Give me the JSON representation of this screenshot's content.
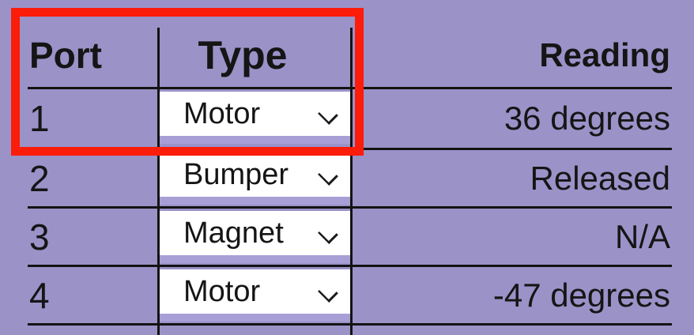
{
  "table": {
    "headers": {
      "port": "Port",
      "type": "Type",
      "reading": "Reading"
    },
    "rows": [
      {
        "port": "1",
        "type": "Motor",
        "reading": "36 degrees"
      },
      {
        "port": "2",
        "type": "Bumper",
        "reading": "Released"
      },
      {
        "port": "3",
        "type": "Magnet",
        "reading": "N/A"
      },
      {
        "port": "4",
        "type": "Motor",
        "reading": "-47 degrees"
      }
    ]
  },
  "icons": {
    "select_chevron": "chevron-down"
  },
  "annotation": {
    "type": "highlight-rectangle",
    "color": "#fb1c0a"
  },
  "colors": {
    "background": "#9b92c8",
    "select_background": "#ffffff",
    "select_strip": "#a89fd6",
    "grid_line": "#131313",
    "text": "#151515"
  }
}
